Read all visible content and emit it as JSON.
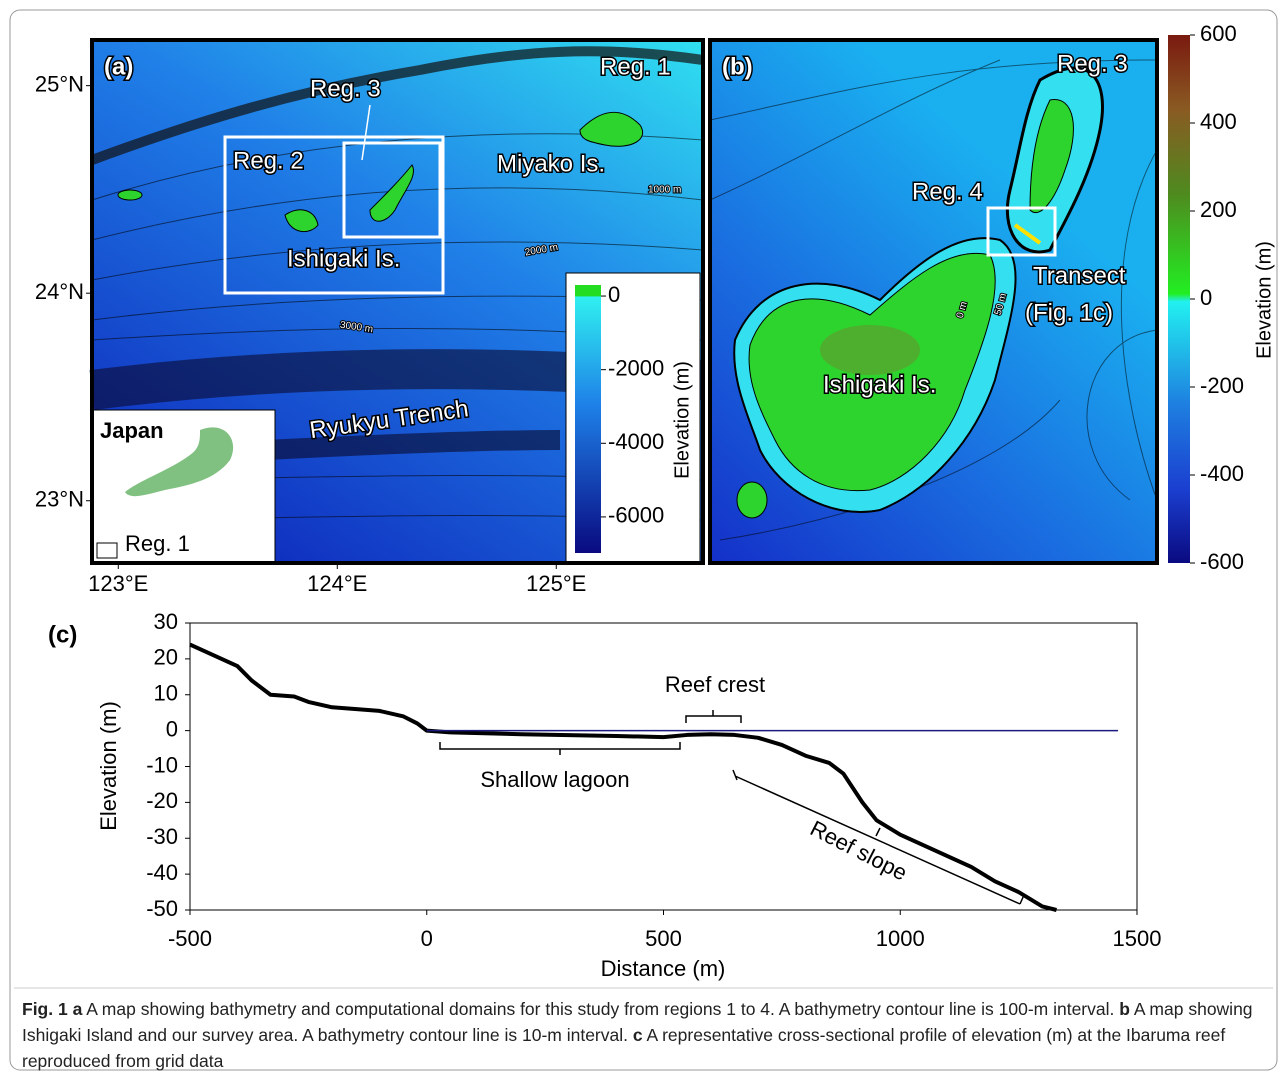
{
  "panel_a": {
    "label": "(a)",
    "texts": {
      "reg1": "Reg. 1",
      "reg2": "Reg. 2",
      "reg3": "Reg. 3",
      "miyako": "Miyako Is.",
      "ishigaki": "Ishigaki Is.",
      "trench": "Ryukyu  Trench",
      "c1000": "1000 m",
      "c2000": "2000 m",
      "c3000": "3000 m",
      "japan": "Japan",
      "inset_reg1": "Reg. 1"
    },
    "lat_lim": [
      22.7,
      25.22
    ],
    "lat_ticks": [
      {
        "value": 25,
        "label": "25°N"
      },
      {
        "value": 24,
        "label": "24°N"
      },
      {
        "value": 23,
        "label": "23°N"
      }
    ],
    "lon_lim": [
      122.88,
      125.67
    ],
    "lon_ticks": [
      {
        "value": 123,
        "label": "123°E"
      },
      {
        "value": 124,
        "label": "124°E"
      },
      {
        "value": 125,
        "label": "125°E"
      }
    ],
    "colorbar": {
      "label": "Elevation (m)",
      "lim": [
        -6980,
        300
      ],
      "ticks": [
        0,
        -2000,
        -4000,
        -6000
      ]
    }
  },
  "panel_b": {
    "label": "(b)",
    "texts": {
      "reg3": "Reg. 3",
      "reg4": "Reg. 4",
      "transect": "Transect",
      "transect2": "(Fig. 1c)",
      "ishigaki": "Ishigaki Is.",
      "c0": "0 m",
      "c50": "50 m"
    },
    "colorbar": {
      "label": "Elevation (m)",
      "lim": [
        -600,
        600
      ],
      "ticks": [
        600,
        400,
        200,
        0,
        -200,
        -400,
        -600
      ]
    }
  },
  "chart_data": {
    "type": "line",
    "panel_label": "(c)",
    "x_label": "Distance (m)",
    "y_label": "Elevation (m)",
    "xlim": [
      -500,
      1500
    ],
    "xticks": [
      -500,
      0,
      500,
      1000,
      1500
    ],
    "ylim": [
      -50,
      30
    ],
    "yticks": [
      30,
      20,
      10,
      0,
      -10,
      -20,
      -30,
      -40,
      -50
    ],
    "annotations": [
      "Reef crest",
      "Shallow lagoon",
      "Reef slope"
    ],
    "series": [
      {
        "color": "#000000",
        "x": [
          -500,
          -450,
          -400,
          -370,
          -330,
          -280,
          -250,
          -200,
          -100,
          -50,
          -20,
          0,
          50,
          200,
          400,
          500,
          550,
          600,
          650,
          700,
          750,
          800,
          850,
          880,
          920,
          950,
          1000,
          1050,
          1100,
          1150,
          1200,
          1250,
          1300,
          1330
        ],
        "values": [
          24,
          21,
          18,
          14,
          10,
          9.5,
          8,
          6.5,
          5.5,
          4,
          2,
          0,
          -0.5,
          -1,
          -1.5,
          -1.8,
          -1.2,
          -1,
          -1.2,
          -2,
          -4,
          -7,
          -9,
          -12,
          -20,
          -25,
          -29,
          -32,
          -35,
          -38,
          -42,
          -45,
          -49,
          -50
        ]
      },
      {
        "color": "#1a1a80",
        "x": [
          0,
          1460
        ],
        "values": [
          0,
          0
        ]
      }
    ]
  },
  "caption": {
    "label": "Fig. 1",
    "parts": [
      {
        "letter": "a",
        "text": "A map showing bathymetry and computational domains for this study from regions 1 to 4. A bathymetry contour line is 100-m interval."
      },
      {
        "letter": "b",
        "text": "A map showing Ishigaki Island and our survey area. A bathymetry contour line is 10-m interval."
      },
      {
        "letter": "c",
        "text": "A representative cross-sectional profile of elevation (m) at the Ibaruma reef reproduced from grid data"
      }
    ]
  }
}
